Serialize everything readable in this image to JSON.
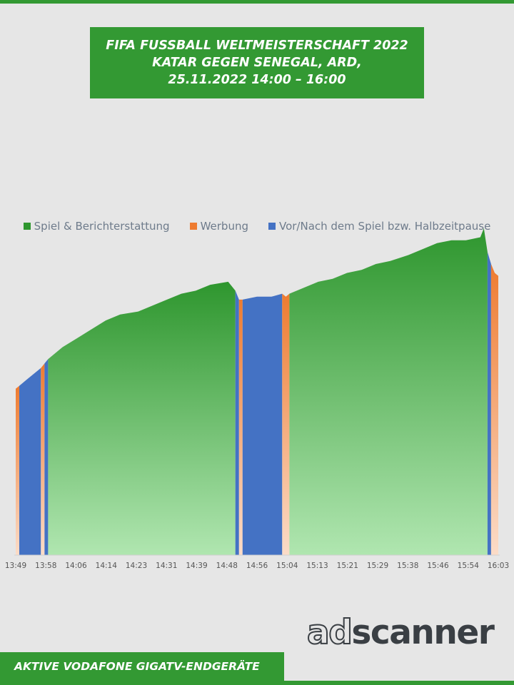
{
  "header": {
    "title_lines": [
      "FIFA FUSSBALL WELTMEISTERSCHAFT 2022",
      "KATAR GEGEN SENEGAL, ARD,",
      "25.11.2022  14:00 – 16:00"
    ]
  },
  "footer": {
    "label": "AKTIVE VODAFONE GIGATV-ENDGERÄTE",
    "brand_part1": "ad",
    "brand_part2": "scanner"
  },
  "colors": {
    "brand_green": "#339933",
    "game": "#2e962e",
    "ads": "#ee7b30",
    "pre_post": "#4472c4"
  },
  "chart_data": {
    "type": "area",
    "x_tick_labels": [
      "13:49",
      "13:58",
      "14:06",
      "14:14",
      "14:23",
      "14:31",
      "14:39",
      "14:48",
      "14:56",
      "15:04",
      "15:13",
      "15:21",
      "15:29",
      "15:38",
      "15:46",
      "15:54",
      "16:03"
    ],
    "xlim": [
      "13:49",
      "16:03"
    ],
    "y_axis_visible": false,
    "grid": false,
    "legend_position": "top-center",
    "series": [
      {
        "name": "Spiel & Berichterstattung",
        "color": "#2e962e"
      },
      {
        "name": "Werbung",
        "color": "#ee7b30"
      },
      {
        "name": "Vor/Nach dem Spiel bzw. Halbzeitpause",
        "color": "#4472c4"
      }
    ],
    "segments": [
      {
        "series": 1,
        "start": "13:49",
        "end": "13:50"
      },
      {
        "series": 2,
        "start": "13:50",
        "end": "13:56"
      },
      {
        "series": 1,
        "start": "13:56",
        "end": "13:57"
      },
      {
        "series": 2,
        "start": "13:57",
        "end": "13:58"
      },
      {
        "series": 0,
        "start": "13:58",
        "end": "14:50"
      },
      {
        "series": 2,
        "start": "14:50",
        "end": "14:51"
      },
      {
        "series": 1,
        "start": "14:51",
        "end": "14:52"
      },
      {
        "series": 2,
        "start": "14:52",
        "end": "15:03"
      },
      {
        "series": 1,
        "start": "15:03",
        "end": "15:05"
      },
      {
        "series": 0,
        "start": "15:05",
        "end": "16:00"
      },
      {
        "series": 2,
        "start": "16:00",
        "end": "16:01"
      },
      {
        "series": 1,
        "start": "16:01",
        "end": "16:03"
      }
    ],
    "relative_values": [
      [
        "13:49",
        0.56
      ],
      [
        "13:50",
        0.57
      ],
      [
        "13:52",
        0.59
      ],
      [
        "13:54",
        0.61
      ],
      [
        "13:56",
        0.63
      ],
      [
        "13:58",
        0.66
      ],
      [
        "14:02",
        0.7
      ],
      [
        "14:06",
        0.73
      ],
      [
        "14:10",
        0.76
      ],
      [
        "14:14",
        0.79
      ],
      [
        "14:18",
        0.81
      ],
      [
        "14:23",
        0.82
      ],
      [
        "14:27",
        0.84
      ],
      [
        "14:31",
        0.86
      ],
      [
        "14:35",
        0.88
      ],
      [
        "14:39",
        0.89
      ],
      [
        "14:43",
        0.91
      ],
      [
        "14:48",
        0.92
      ],
      [
        "14:50",
        0.89
      ],
      [
        "14:51",
        0.86
      ],
      [
        "14:52",
        0.86
      ],
      [
        "14:56",
        0.87
      ],
      [
        "15:00",
        0.87
      ],
      [
        "15:03",
        0.88
      ],
      [
        "15:04",
        0.87
      ],
      [
        "15:05",
        0.88
      ],
      [
        "15:09",
        0.9
      ],
      [
        "15:13",
        0.92
      ],
      [
        "15:17",
        0.93
      ],
      [
        "15:21",
        0.95
      ],
      [
        "15:25",
        0.96
      ],
      [
        "15:29",
        0.98
      ],
      [
        "15:33",
        0.99
      ],
      [
        "15:38",
        1.01
      ],
      [
        "15:42",
        1.03
      ],
      [
        "15:46",
        1.05
      ],
      [
        "15:50",
        1.06
      ],
      [
        "15:54",
        1.06
      ],
      [
        "15:58",
        1.07
      ],
      [
        "15:59",
        1.1
      ],
      [
        "16:00",
        1.02
      ],
      [
        "16:01",
        0.98
      ],
      [
        "16:02",
        0.95
      ],
      [
        "16:03",
        0.94
      ]
    ]
  }
}
